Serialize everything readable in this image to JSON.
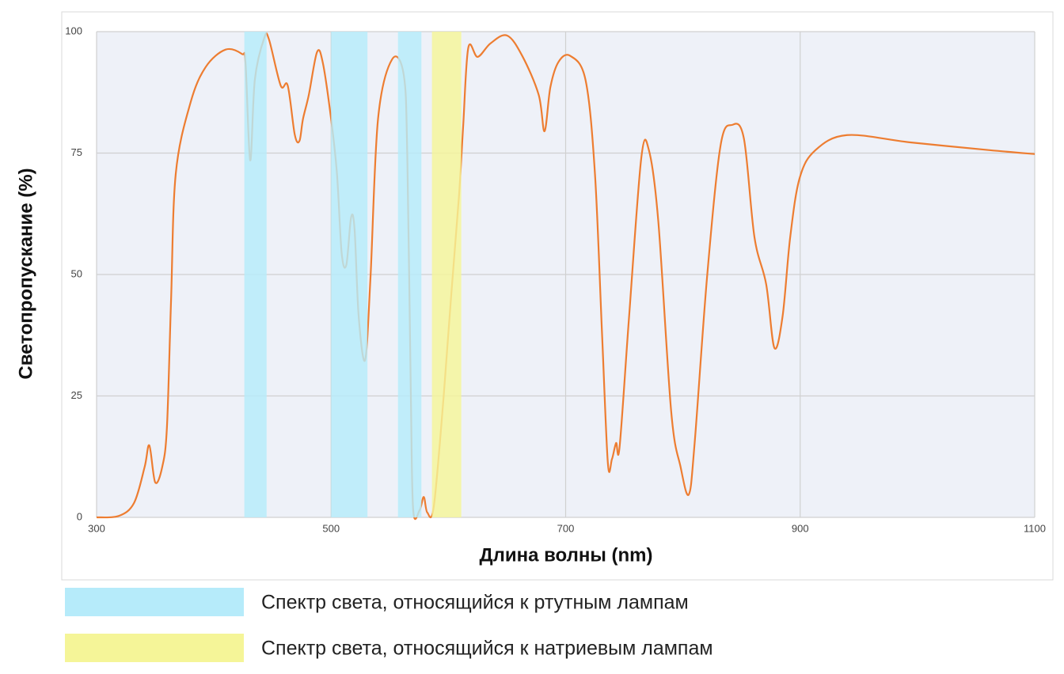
{
  "chart_data": {
    "type": "line",
    "xlabel": "Длина волны (nm)",
    "ylabel": "Светопропускание (%)",
    "xlim": [
      300,
      1100
    ],
    "ylim": [
      0,
      100
    ],
    "xticks": [
      300,
      500,
      700,
      900,
      1100
    ],
    "yticks": [
      0,
      25,
      50,
      75,
      100
    ],
    "grid": true,
    "series": [
      {
        "color": "#ed7d31",
        "x": [
          300,
          319,
          332,
          341,
          345,
          350,
          356,
          360,
          363.5,
          367.5,
          380,
          393,
          410,
          424,
          427,
          431,
          435,
          443,
          447,
          457,
          463,
          469,
          473,
          476,
          481,
          488,
          493,
          500,
          505,
          509,
          513,
          517,
          520,
          523.5,
          529,
          533.6,
          540,
          552,
          562,
          565,
          568,
          570,
          575.5,
          579,
          582,
          587.6,
          596,
          602.5,
          609,
          612.6,
          617,
          625,
          636,
          650,
          663,
          677,
          682,
          687,
          694,
          704,
          717,
          725,
          731,
          736,
          739.5,
          743,
          746,
          754,
          764.5,
          771,
          779,
          790,
          798,
          805,
          810,
          820.6,
          832,
          842,
          852,
          861,
          871,
          878,
          885,
          891.5,
          899.6,
          913,
          940,
          994,
          1061.6,
          1100
        ],
        "values": [
          0,
          0.3,
          3,
          10.4,
          14.8,
          7.2,
          10.4,
          18.6,
          44.6,
          70.7,
          85.3,
          92.7,
          96.3,
          95.4,
          93.5,
          73.5,
          90.2,
          98.7,
          98.4,
          88.9,
          88.9,
          78.8,
          77.5,
          82,
          87,
          95.8,
          93.5,
          82,
          70.7,
          54.4,
          52,
          61.7,
          59.3,
          41.4,
          32.4,
          49.5,
          82,
          94.3,
          91,
          73.9,
          25,
          1.5,
          1.5,
          4.2,
          1,
          2.3,
          25,
          46,
          66,
          80.5,
          96.7,
          94.8,
          97.6,
          99.2,
          95,
          87,
          79.5,
          88.6,
          93.8,
          95,
          90,
          70.7,
          38,
          11.2,
          12,
          15.3,
          14.5,
          41,
          74,
          75.6,
          61,
          21.8,
          10.4,
          4.7,
          15.3,
          49.5,
          76.4,
          80.8,
          78,
          57.7,
          48,
          34.9,
          41.4,
          57.7,
          69.9,
          75.6,
          78.7,
          77.2,
          75.6,
          74.8
        ]
      }
    ],
    "bands": [
      {
        "name": "Спектр света, относящийся к ртутным лампам",
        "color": "#b6ebfa",
        "ranges": [
          [
            426,
            445
          ],
          [
            500,
            531
          ],
          [
            557,
            577
          ]
        ]
      },
      {
        "name": "Спектр света, относящийся к натриевым лампам",
        "color": "#f5f598",
        "ranges": [
          [
            586,
            611
          ]
        ]
      }
    ]
  }
}
